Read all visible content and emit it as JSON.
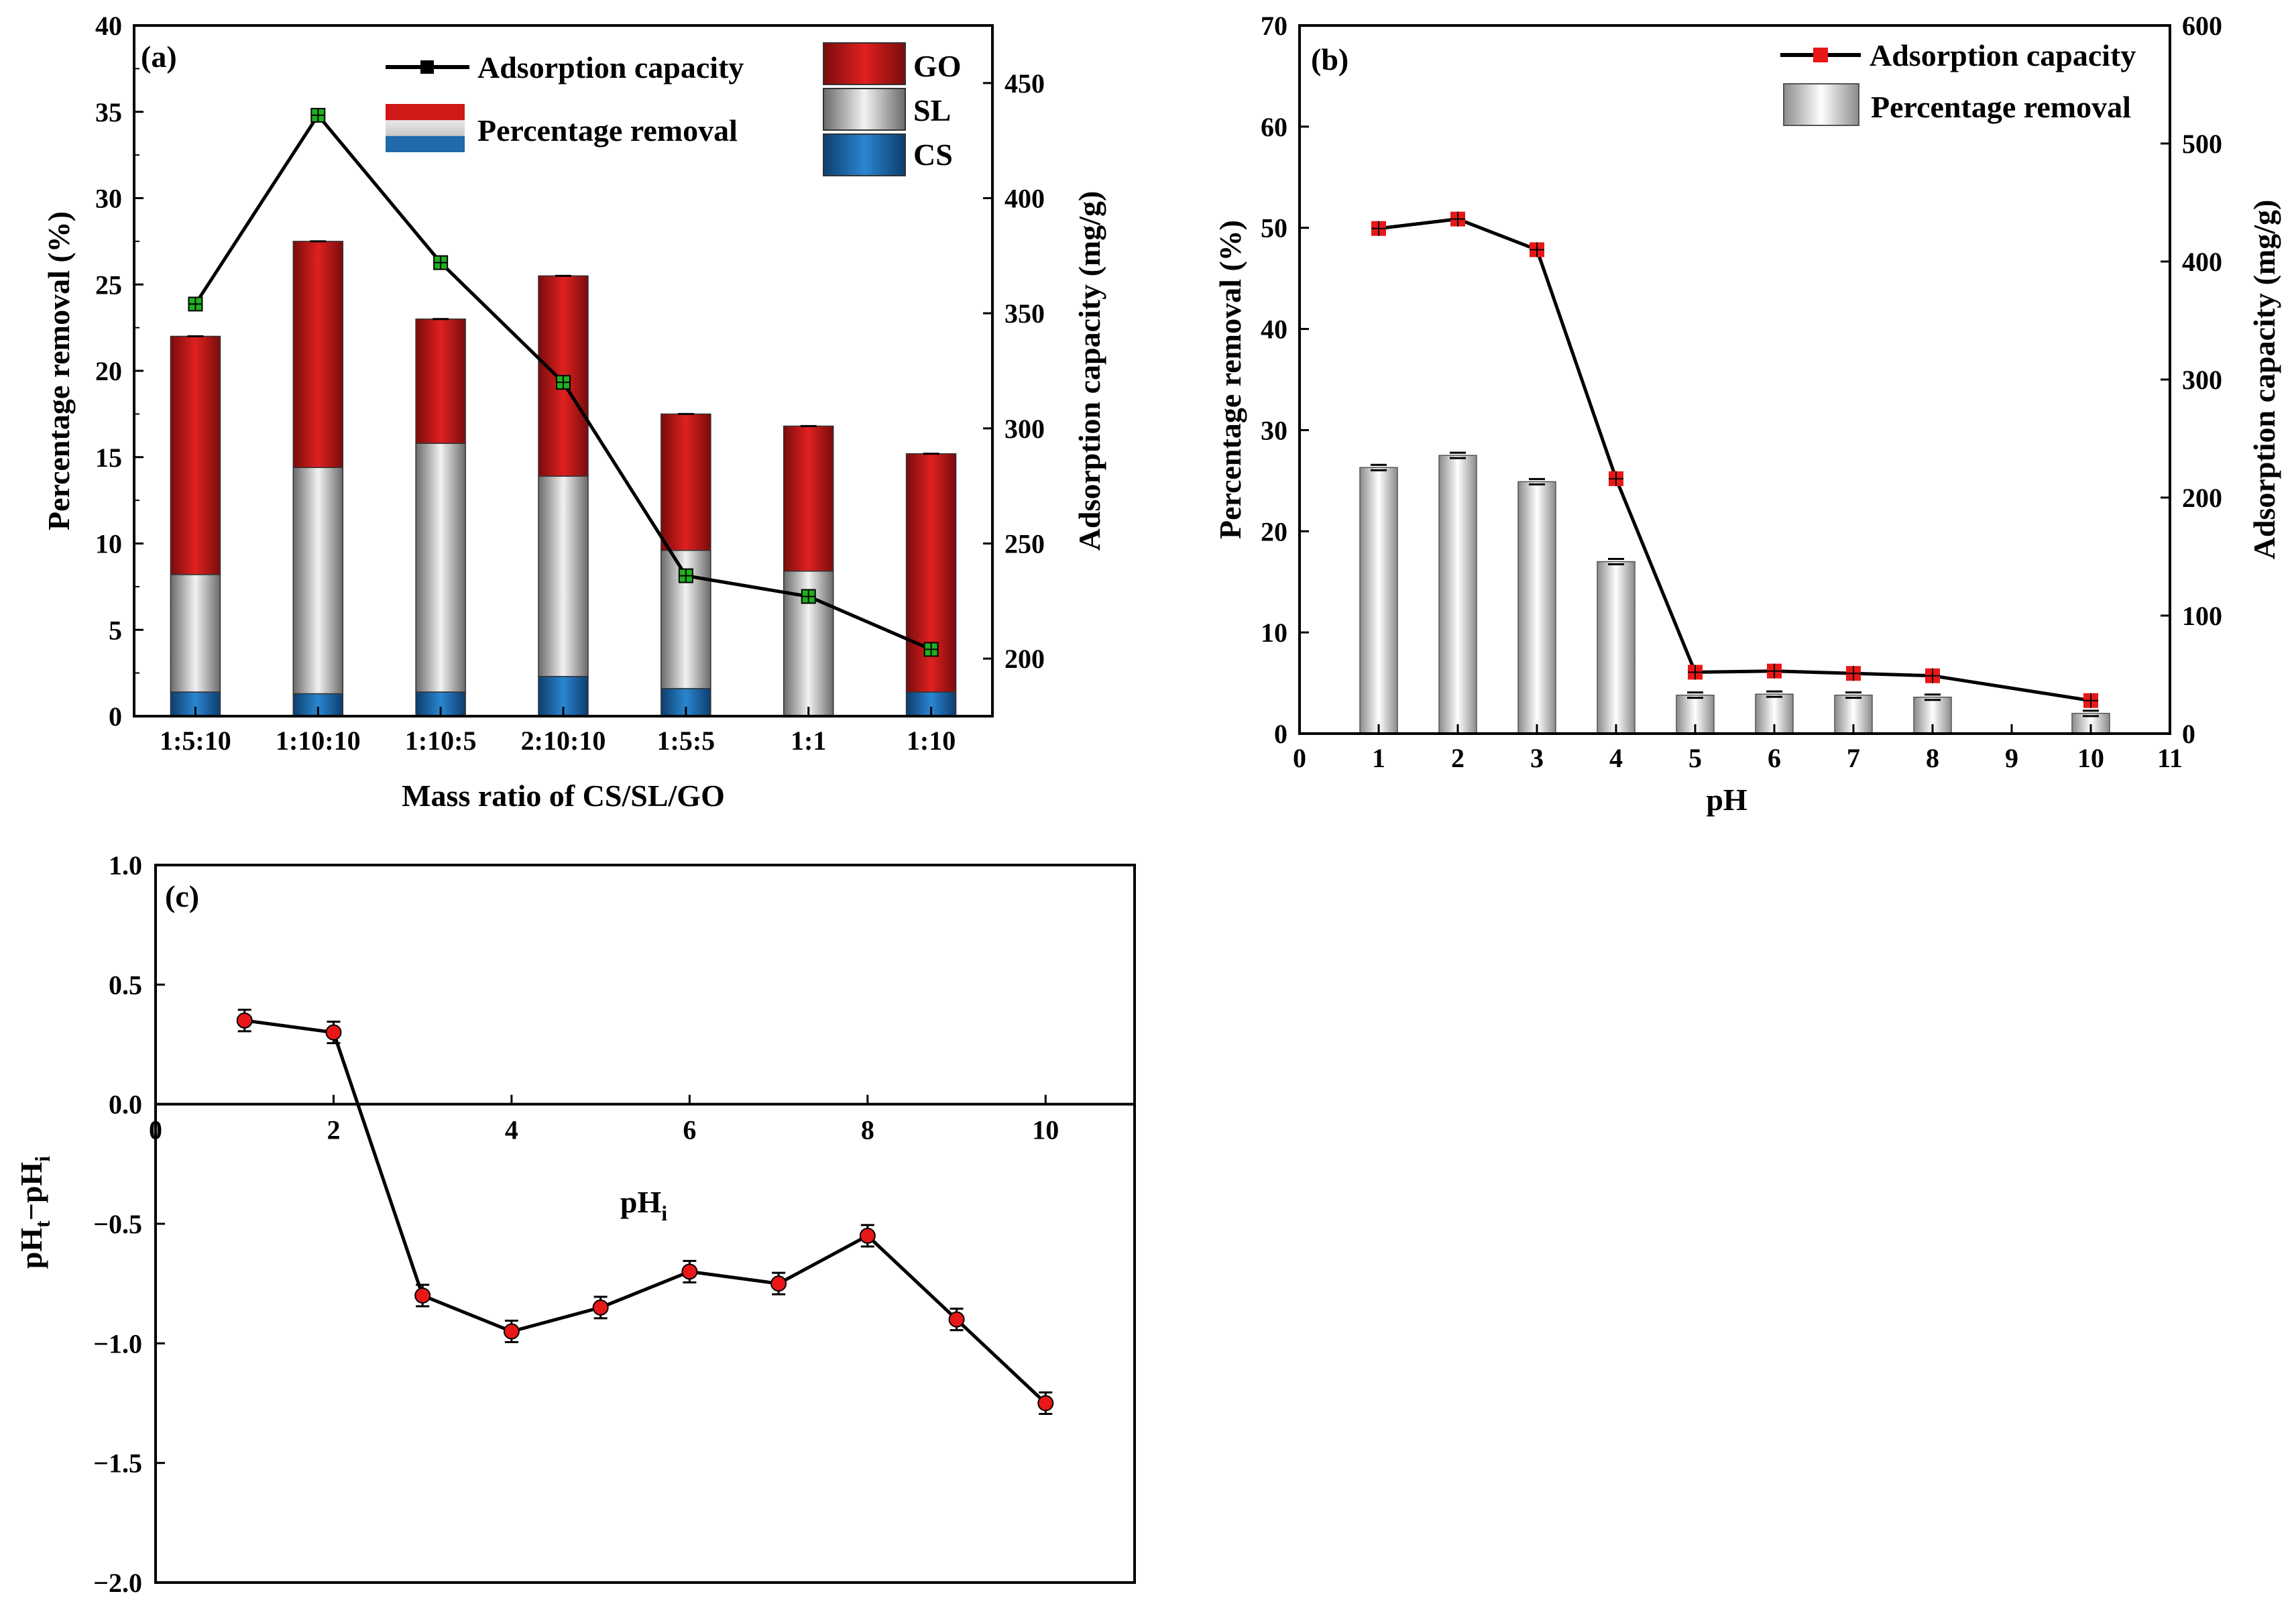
{
  "chart_data": [
    {
      "panel": "(a)",
      "type": "bar",
      "stacked": true,
      "categories": [
        "1:5:10",
        "1:10:10",
        "1:10:5",
        "2:10:10",
        "1:5:5",
        "1:1",
        "1:10"
      ],
      "series": [
        {
          "name": "CS",
          "values": [
            1.4,
            1.3,
            1.4,
            2.3,
            1.6,
            0,
            1.4
          ]
        },
        {
          "name": "SL",
          "values": [
            6.8,
            13.1,
            14.4,
            11.6,
            8.0,
            8.4,
            0
          ]
        },
        {
          "name": "GO",
          "values": [
            13.8,
            13.1,
            7.2,
            11.6,
            7.9,
            8.4,
            13.8
          ]
        }
      ],
      "totals": [
        22.0,
        27.5,
        23.0,
        25.5,
        17.5,
        16.8,
        15.2
      ],
      "line": {
        "name": "Adsorption capacity",
        "values": [
          354,
          436,
          372,
          320,
          236,
          227,
          204
        ]
      },
      "xlabel": "Mass ratio of CS/SL/GO",
      "ylabel": "Percentage removal (%)",
      "y2label": "Adsorption capacity (mg/g)",
      "ylim": [
        0,
        40
      ],
      "y2lim": [
        175,
        475
      ],
      "yticks": [
        "0",
        "5",
        "10",
        "15",
        "20",
        "25",
        "30",
        "35",
        "40"
      ],
      "y2ticks": [
        "200",
        "250",
        "300",
        "350",
        "400",
        "450"
      ],
      "legend": {
        "line": "Adsorption capacity",
        "bar": "Percentage removal",
        "components": [
          "GO",
          "SL",
          "CS"
        ]
      },
      "colors": {
        "GO": "#d01818",
        "SL": "#b8b8b8",
        "CS": "#1e6aaa",
        "line": "#000000",
        "marker": "#1fb01f"
      }
    },
    {
      "panel": "(b)",
      "type": "bar",
      "x": [
        1,
        2,
        3,
        4,
        5,
        6,
        7,
        8,
        10
      ],
      "bars": {
        "name": "Percentage removal",
        "values": [
          26.3,
          27.5,
          24.9,
          17.0,
          3.8,
          3.9,
          3.8,
          3.6,
          2.0
        ]
      },
      "line": {
        "name": "Adsorption capacity",
        "values": [
          428,
          436,
          410,
          216,
          52,
          53,
          51,
          49,
          28
        ]
      },
      "xlabel": "pH",
      "ylabel": "Percentage removal (%)",
      "y2label": "Adsorption capacity (mg/g)",
      "xlim": [
        0,
        11
      ],
      "ylim": [
        0,
        70
      ],
      "y2lim": [
        0,
        600
      ],
      "xticks": [
        "0",
        "1",
        "2",
        "3",
        "4",
        "5",
        "6",
        "7",
        "8",
        "9",
        "10",
        "11"
      ],
      "yticks": [
        "0",
        "10",
        "20",
        "30",
        "40",
        "50",
        "60",
        "70"
      ],
      "y2ticks": [
        "0",
        "100",
        "200",
        "300",
        "400",
        "500",
        "600"
      ],
      "legend": {
        "line": "Adsorption capacity",
        "bar": "Percentage removal"
      },
      "colors": {
        "bar": "#c8c8c8",
        "line": "#000000",
        "marker": "#e81818"
      }
    },
    {
      "panel": "(c)",
      "type": "line",
      "x": [
        1,
        2,
        3,
        4,
        5,
        6,
        7,
        8,
        9,
        10
      ],
      "y": [
        0.35,
        0.3,
        -0.8,
        -0.95,
        -0.85,
        -0.7,
        -0.75,
        -0.55,
        -0.9,
        -1.25
      ],
      "xlabel": "pH",
      "xlabel_sub": "i",
      "ylabel_parts": [
        "pH",
        "t",
        "−pH",
        "i"
      ],
      "xlim": [
        0,
        11
      ],
      "ylim": [
        -2.0,
        1.0
      ],
      "xticks": [
        "0",
        "2",
        "4",
        "6",
        "8",
        "10"
      ],
      "yticks": [
        "1.0",
        "0.5",
        "0.0",
        "−0.5",
        "−1.0",
        "−1.5",
        "−2.0"
      ],
      "colors": {
        "line": "#000000",
        "marker": "#e81818"
      }
    }
  ]
}
